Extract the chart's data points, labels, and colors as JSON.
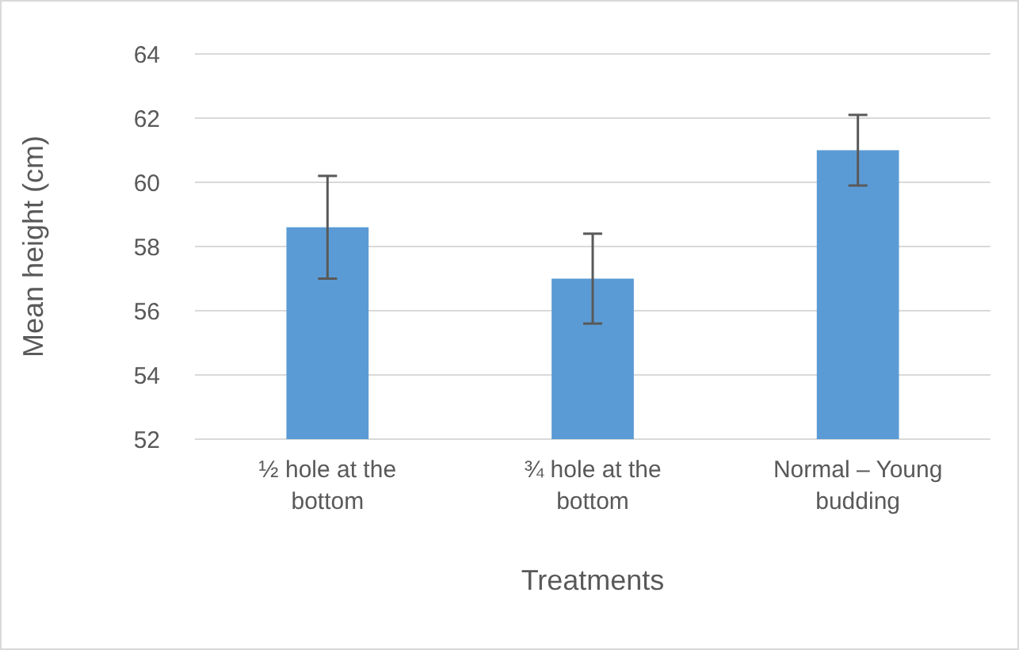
{
  "chart_data": {
    "type": "bar",
    "xlabel": "Treatments",
    "ylabel": "Mean height (cm)",
    "categories": [
      "½ hole at the bottom",
      "¾ hole at the bottom",
      "Normal – Young budding"
    ],
    "values": [
      58.6,
      57.0,
      61.0
    ],
    "errors": [
      1.6,
      1.4,
      1.1
    ],
    "color": "#5b9bd5",
    "ylim": [
      52,
      64
    ],
    "yticks": [
      52,
      54,
      56,
      58,
      60,
      62,
      64
    ],
    "grid": "y"
  }
}
